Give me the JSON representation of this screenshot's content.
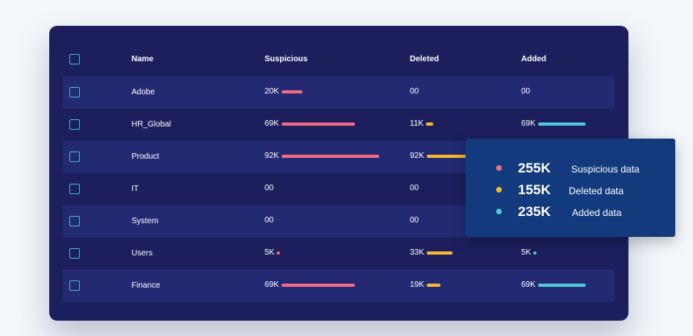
{
  "colors": {
    "suspicious": "#f06b84",
    "deleted": "#f5b731",
    "added": "#52c7db",
    "panel_background": "#1c1f5c",
    "alt_row_background": "#242a72",
    "popup_background": "#123a7c"
  },
  "table": {
    "headers": {
      "name": "Name",
      "suspicious": "Suspicious",
      "deleted": "Deleted",
      "added": "Added"
    },
    "rows": [
      {
        "name": "Adobe",
        "suspicious": "20K",
        "deleted": "00",
        "added": "00"
      },
      {
        "name": "HR_Global",
        "suspicious": "69K",
        "deleted": "11K",
        "added": "69K"
      },
      {
        "name": "Product",
        "suspicious": "92K",
        "deleted": "92K",
        "added": ""
      },
      {
        "name": "IT",
        "suspicious": "00",
        "deleted": "00",
        "added": ""
      },
      {
        "name": "System",
        "suspicious": "00",
        "deleted": "00",
        "added": ""
      },
      {
        "name": "Users",
        "suspicious": "5K",
        "deleted": "33K",
        "added": "5K"
      },
      {
        "name": "Finance",
        "suspicious": "69K",
        "deleted": "19K",
        "added": "69K"
      }
    ]
  },
  "summary_popup": {
    "items": [
      {
        "value": "255K",
        "label": "Suspicious data",
        "color": "#f06b84"
      },
      {
        "value": "155K",
        "label": "Deleted data",
        "color": "#f5b731"
      },
      {
        "value": "235K",
        "label": "Added data",
        "color": "#52c7db"
      }
    ]
  }
}
